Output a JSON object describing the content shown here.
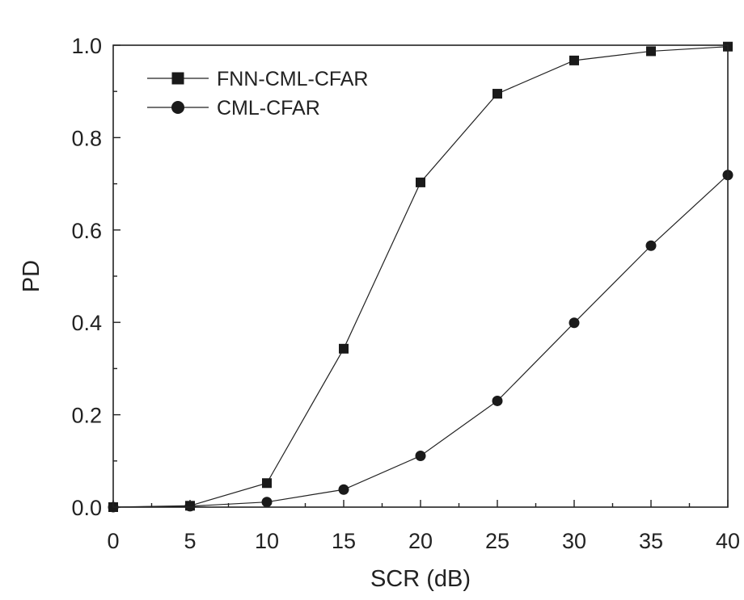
{
  "chart_data": {
    "type": "line",
    "title": "",
    "xlabel": "SCR (dB)",
    "ylabel": "PD",
    "xlim": [
      0,
      40
    ],
    "ylim": [
      0,
      1.0
    ],
    "x_ticks": [
      0,
      5,
      10,
      15,
      20,
      25,
      30,
      35,
      40
    ],
    "x_tick_labels": [
      "0",
      "5",
      "10",
      "15",
      "20",
      "25",
      "30",
      "35",
      "40"
    ],
    "y_ticks": [
      0,
      0.2,
      0.4,
      0.6,
      0.8,
      1.0
    ],
    "y_tick_labels": [
      "0.0",
      "0.2",
      "0.4",
      "0.6",
      "0.8",
      "1.0"
    ],
    "grid": false,
    "legend_position": "top-left",
    "x": [
      0,
      5,
      10,
      15,
      20,
      25,
      30,
      35,
      40
    ],
    "series": [
      {
        "name": "FNN-CML-CFAR",
        "marker": "square",
        "values": [
          0.0,
          0.003,
          0.052,
          0.343,
          0.703,
          0.895,
          0.967,
          0.987,
          0.997
        ]
      },
      {
        "name": "CML-CFAR",
        "marker": "circle",
        "values": [
          0.0,
          0.002,
          0.011,
          0.038,
          0.111,
          0.23,
          0.399,
          0.566,
          0.719
        ]
      }
    ]
  }
}
